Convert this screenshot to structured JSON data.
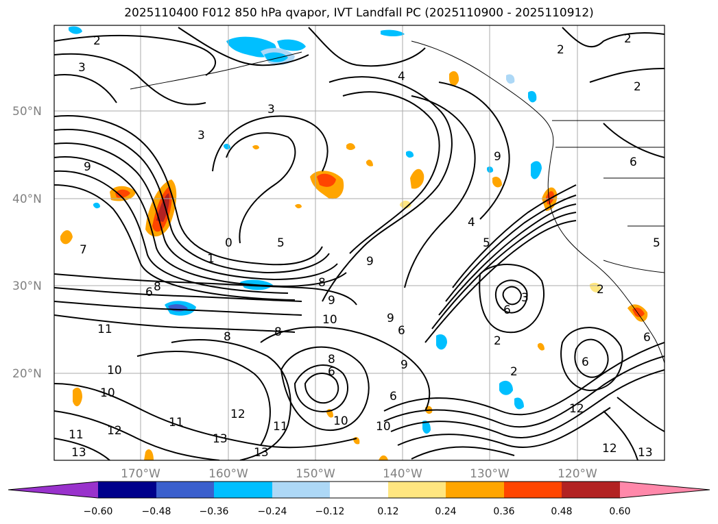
{
  "title": "2025110400 F012 850 hPa qvapor, IVT Landfall PC (2025110900 - 2025110912)",
  "map": {
    "lat_labels": [
      "50°N",
      "40°N",
      "30°N",
      "20°N"
    ],
    "lon_labels": [
      "170°W",
      "160°W",
      "150°W",
      "140°W",
      "130°W",
      "120°W"
    ],
    "contour_labels": [
      "2",
      "3",
      "3",
      "3",
      "4",
      "2",
      "2",
      "2",
      "9",
      "7",
      "0",
      "5",
      "1",
      "8",
      "8",
      "9",
      "9",
      "10",
      "11",
      "8",
      "8",
      "6",
      "9",
      "9",
      "6",
      "5",
      "4",
      "3",
      "6",
      "2",
      "2",
      "10",
      "10",
      "12",
      "12",
      "11",
      "11",
      "13",
      "13",
      "10",
      "11",
      "10",
      "6",
      "13",
      "12",
      "13",
      "6",
      "9",
      "6",
      "2",
      "8",
      "6",
      "5",
      "12",
      "6"
    ]
  },
  "colorbar": {
    "ticks": [
      "−0.60",
      "−0.48",
      "−0.36",
      "−0.24",
      "−0.12",
      "0.12",
      "0.24",
      "0.36",
      "0.48",
      "0.60"
    ],
    "colors": [
      "#9932cc",
      "#00008b",
      "#3a5fcd",
      "#00bfff",
      "#add8f6",
      "#ffffff",
      "#ffe680",
      "#ffa500",
      "#ff4500",
      "#b22222",
      "#ff88aa"
    ]
  }
}
